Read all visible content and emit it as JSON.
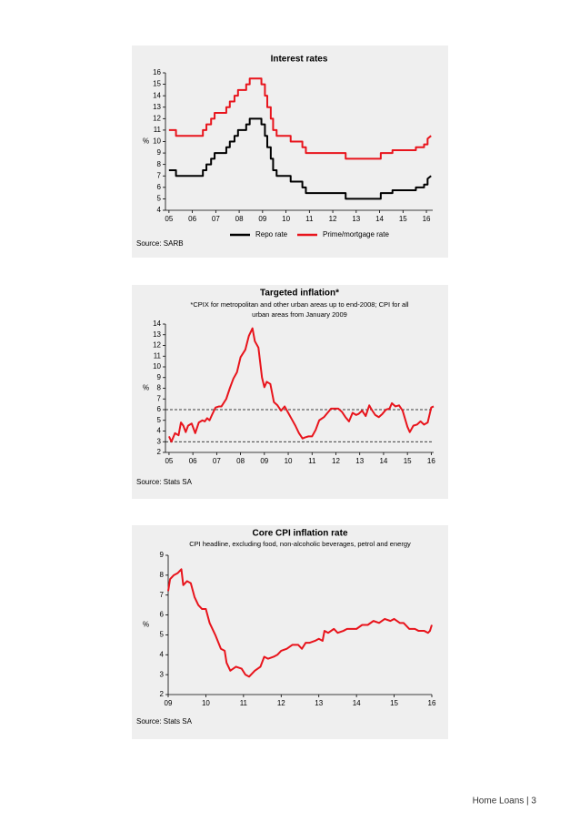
{
  "chart_data": [
    {
      "type": "line",
      "title": "Interest rates",
      "y_label": "%",
      "source": "Source: SARB",
      "legend": "bottom",
      "x": [
        5.0,
        5.3,
        5.3,
        6.45,
        6.45,
        6.6,
        6.6,
        6.8,
        6.8,
        6.95,
        6.95,
        7.45,
        7.45,
        7.6,
        7.6,
        7.8,
        7.8,
        7.95,
        7.95,
        8.3,
        8.3,
        8.45,
        8.45,
        8.95,
        8.95,
        9.1,
        9.1,
        9.2,
        9.2,
        9.35,
        9.35,
        9.45,
        9.45,
        9.6,
        9.6,
        10.2,
        10.2,
        10.7,
        10.7,
        10.85,
        10.85,
        12.55,
        12.55,
        14.05,
        14.05,
        14.55,
        14.55,
        15.55,
        15.55,
        15.9,
        15.9,
        16.05,
        16.05,
        16.2
      ],
      "series": [
        {
          "name": "Repo rate",
          "color": "#000000",
          "values": [
            7.5,
            7.5,
            7.0,
            7.0,
            7.5,
            7.5,
            8.0,
            8.0,
            8.5,
            8.5,
            9.0,
            9.0,
            9.5,
            9.5,
            10.0,
            10.0,
            10.5,
            10.5,
            11.0,
            11.0,
            11.5,
            11.5,
            12.0,
            12.0,
            11.5,
            11.5,
            10.5,
            10.5,
            9.5,
            9.5,
            8.5,
            8.5,
            7.5,
            7.5,
            7.0,
            7.0,
            6.5,
            6.5,
            6.0,
            6.0,
            5.5,
            5.5,
            5.0,
            5.0,
            5.5,
            5.5,
            5.75,
            5.75,
            6.0,
            6.0,
            6.25,
            6.25,
            6.75,
            7.0
          ]
        },
        {
          "name": "Prime/mortgage rate",
          "color": "#e8141c",
          "values": [
            11,
            11,
            10.5,
            10.5,
            11,
            11,
            11.5,
            11.5,
            12,
            12,
            12.5,
            12.5,
            13,
            13,
            13.5,
            13.5,
            14,
            14,
            14.5,
            14.5,
            15,
            15,
            15.5,
            15.5,
            15,
            15,
            14,
            14,
            13,
            13,
            12,
            12,
            11,
            11,
            10.5,
            10.5,
            10,
            10,
            9.5,
            9.5,
            9,
            9,
            8.5,
            8.5,
            9,
            9,
            9.25,
            9.25,
            9.5,
            9.5,
            9.75,
            9.75,
            10.25,
            10.5
          ]
        }
      ],
      "xlim": [
        4.85,
        16.27
      ],
      "xticks": [
        {
          "value": 5,
          "label": "05"
        },
        {
          "value": 6,
          "label": "06"
        },
        {
          "value": 7,
          "label": "07"
        },
        {
          "value": 8,
          "label": "08"
        },
        {
          "value": 9,
          "label": "09"
        },
        10,
        11,
        12,
        13,
        14,
        15,
        16
      ],
      "ylim": [
        4,
        16
      ],
      "yticks": [
        4,
        5,
        6,
        7,
        8,
        9,
        10,
        11,
        12,
        13,
        14,
        15,
        16
      ]
    },
    {
      "type": "line",
      "title": "Targeted inflation*",
      "subtitle": [
        "*CPIX for metropolitan and other urban areas up to end-2008; CPI for all",
        "urban areas from January 2009"
      ],
      "y_label": "%",
      "source": "Source: Stats SA",
      "x": [
        5.0,
        5.1,
        5.25,
        5.4,
        5.5,
        5.6,
        5.7,
        5.8,
        5.95,
        6.1,
        6.25,
        6.4,
        6.5,
        6.6,
        6.7,
        6.8,
        6.95,
        7.1,
        7.2,
        7.4,
        7.55,
        7.7,
        7.85,
        8.0,
        8.2,
        8.35,
        8.5,
        8.6,
        8.75,
        8.9,
        9.0,
        9.1,
        9.25,
        9.4,
        9.55,
        9.7,
        9.85,
        10.0,
        10.15,
        10.3,
        10.45,
        10.6,
        10.7,
        10.85,
        11.0,
        11.15,
        11.3,
        11.5,
        11.65,
        11.8,
        11.95,
        12.1,
        12.25,
        12.4,
        12.55,
        12.7,
        12.85,
        12.95,
        13.1,
        13.25,
        13.4,
        13.5,
        13.65,
        13.8,
        13.95,
        14.1,
        14.25,
        14.35,
        14.5,
        14.65,
        14.8,
        15.0,
        15.1,
        15.25,
        15.4,
        15.55,
        15.7,
        15.85,
        16.0,
        16.1
      ],
      "series": [
        {
          "name": "Targeted inflation",
          "color": "#e8141c",
          "values": [
            3.5,
            3.0,
            3.8,
            3.6,
            4.8,
            4.5,
            3.9,
            4.5,
            4.7,
            3.8,
            4.8,
            5.0,
            4.9,
            5.2,
            5.0,
            5.5,
            6.2,
            6.3,
            6.3,
            7.0,
            8.0,
            8.9,
            9.5,
            10.9,
            11.6,
            12.9,
            13.6,
            12.4,
            11.8,
            9.0,
            8.1,
            8.6,
            8.4,
            6.7,
            6.4,
            5.9,
            6.3,
            5.7,
            5.1,
            4.5,
            3.8,
            3.3,
            3.4,
            3.5,
            3.5,
            4.1,
            5.0,
            5.3,
            5.7,
            6.1,
            6.1,
            6.1,
            5.8,
            5.3,
            4.9,
            5.7,
            5.5,
            5.6,
            5.9,
            5.4,
            6.4,
            6.0,
            5.5,
            5.3,
            5.6,
            6.0,
            6.1,
            6.6,
            6.3,
            6.4,
            5.9,
            4.4,
            3.9,
            4.5,
            4.6,
            4.9,
            4.6,
            4.8,
            6.2,
            6.3
          ]
        }
      ],
      "reference_lines": [
        3,
        6
      ],
      "xlim": [
        4.85,
        16.1
      ],
      "xticks": [
        {
          "value": 5,
          "label": "05"
        },
        {
          "value": 6,
          "label": "06"
        },
        {
          "value": 7,
          "label": "07"
        },
        {
          "value": 8,
          "label": "08"
        },
        {
          "value": 9,
          "label": "09"
        },
        10,
        11,
        12,
        13,
        14,
        15,
        16
      ],
      "ylim": [
        2,
        14
      ],
      "yticks": [
        2,
        3,
        4,
        5,
        6,
        7,
        8,
        9,
        10,
        11,
        12,
        13,
        14
      ]
    },
    {
      "type": "line",
      "title": "Core CPI inflation rate",
      "subtitle": [
        "CPI headline, excluding food, non-alcoholic beverages, petrol and energy"
      ],
      "y_label": "%",
      "source": "Source: Stats SA",
      "x": [
        9.0,
        9.05,
        9.15,
        9.25,
        9.35,
        9.4,
        9.5,
        9.6,
        9.7,
        9.8,
        9.9,
        10.0,
        10.1,
        10.25,
        10.4,
        10.5,
        10.55,
        10.65,
        10.8,
        10.95,
        11.05,
        11.15,
        11.3,
        11.45,
        11.55,
        11.65,
        11.8,
        11.9,
        12.0,
        12.15,
        12.3,
        12.45,
        12.55,
        12.65,
        12.75,
        12.9,
        13.0,
        13.1,
        13.15,
        13.25,
        13.4,
        13.5,
        13.65,
        13.75,
        14.0,
        14.15,
        14.3,
        14.45,
        14.6,
        14.75,
        14.9,
        15.0,
        15.15,
        15.25,
        15.4,
        15.55,
        15.65,
        15.8,
        15.9,
        15.95,
        16.0
      ],
      "series": [
        {
          "name": "Core CPI inflation rate",
          "color": "#e8141c",
          "values": [
            7.2,
            7.8,
            8.0,
            8.1,
            8.3,
            7.5,
            7.7,
            7.6,
            6.9,
            6.5,
            6.3,
            6.3,
            5.6,
            5.0,
            4.3,
            4.2,
            3.6,
            3.2,
            3.4,
            3.3,
            3.0,
            2.9,
            3.2,
            3.4,
            3.9,
            3.8,
            3.9,
            4.0,
            4.2,
            4.3,
            4.5,
            4.5,
            4.3,
            4.6,
            4.6,
            4.7,
            4.8,
            4.7,
            5.2,
            5.1,
            5.3,
            5.1,
            5.2,
            5.3,
            5.3,
            5.5,
            5.5,
            5.7,
            5.6,
            5.8,
            5.7,
            5.8,
            5.6,
            5.6,
            5.3,
            5.3,
            5.2,
            5.2,
            5.1,
            5.2,
            5.5
          ]
        }
      ],
      "xlim": [
        9,
        16
      ],
      "xticks": [
        {
          "value": 9,
          "label": "09"
        },
        10,
        11,
        12,
        13,
        14,
        15,
        16
      ],
      "ylim": [
        2,
        9
      ],
      "yticks": [
        2,
        3,
        4,
        5,
        6,
        7,
        8,
        9
      ]
    }
  ],
  "footer": "Home Loans | 3"
}
